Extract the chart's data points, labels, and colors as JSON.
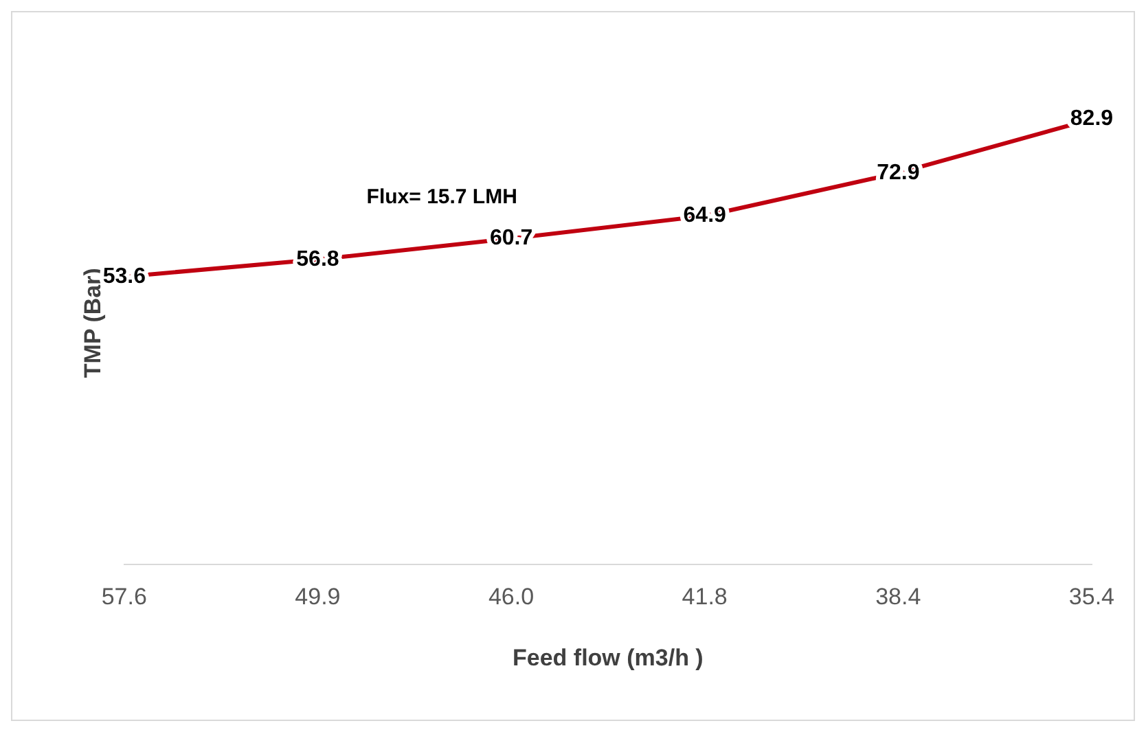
{
  "chart_data": {
    "type": "line",
    "xlabel": "Feed flow (m3/h )",
    "ylabel": "TMP (Bar)",
    "categories": [
      "57.6",
      "49.9",
      "46.0",
      "41.8",
      "38.4",
      "35.4"
    ],
    "series": [
      {
        "color": "#c00010",
        "values": [
          53.6,
          56.8,
          60.7,
          64.9,
          72.9,
          82.9
        ]
      }
    ],
    "data_labels": true,
    "grid": false,
    "legend": false,
    "marker": "none",
    "line_style": "solid",
    "tick_labels": "x",
    "annotations": [
      "Flux= 15.7 LMH"
    ]
  }
}
